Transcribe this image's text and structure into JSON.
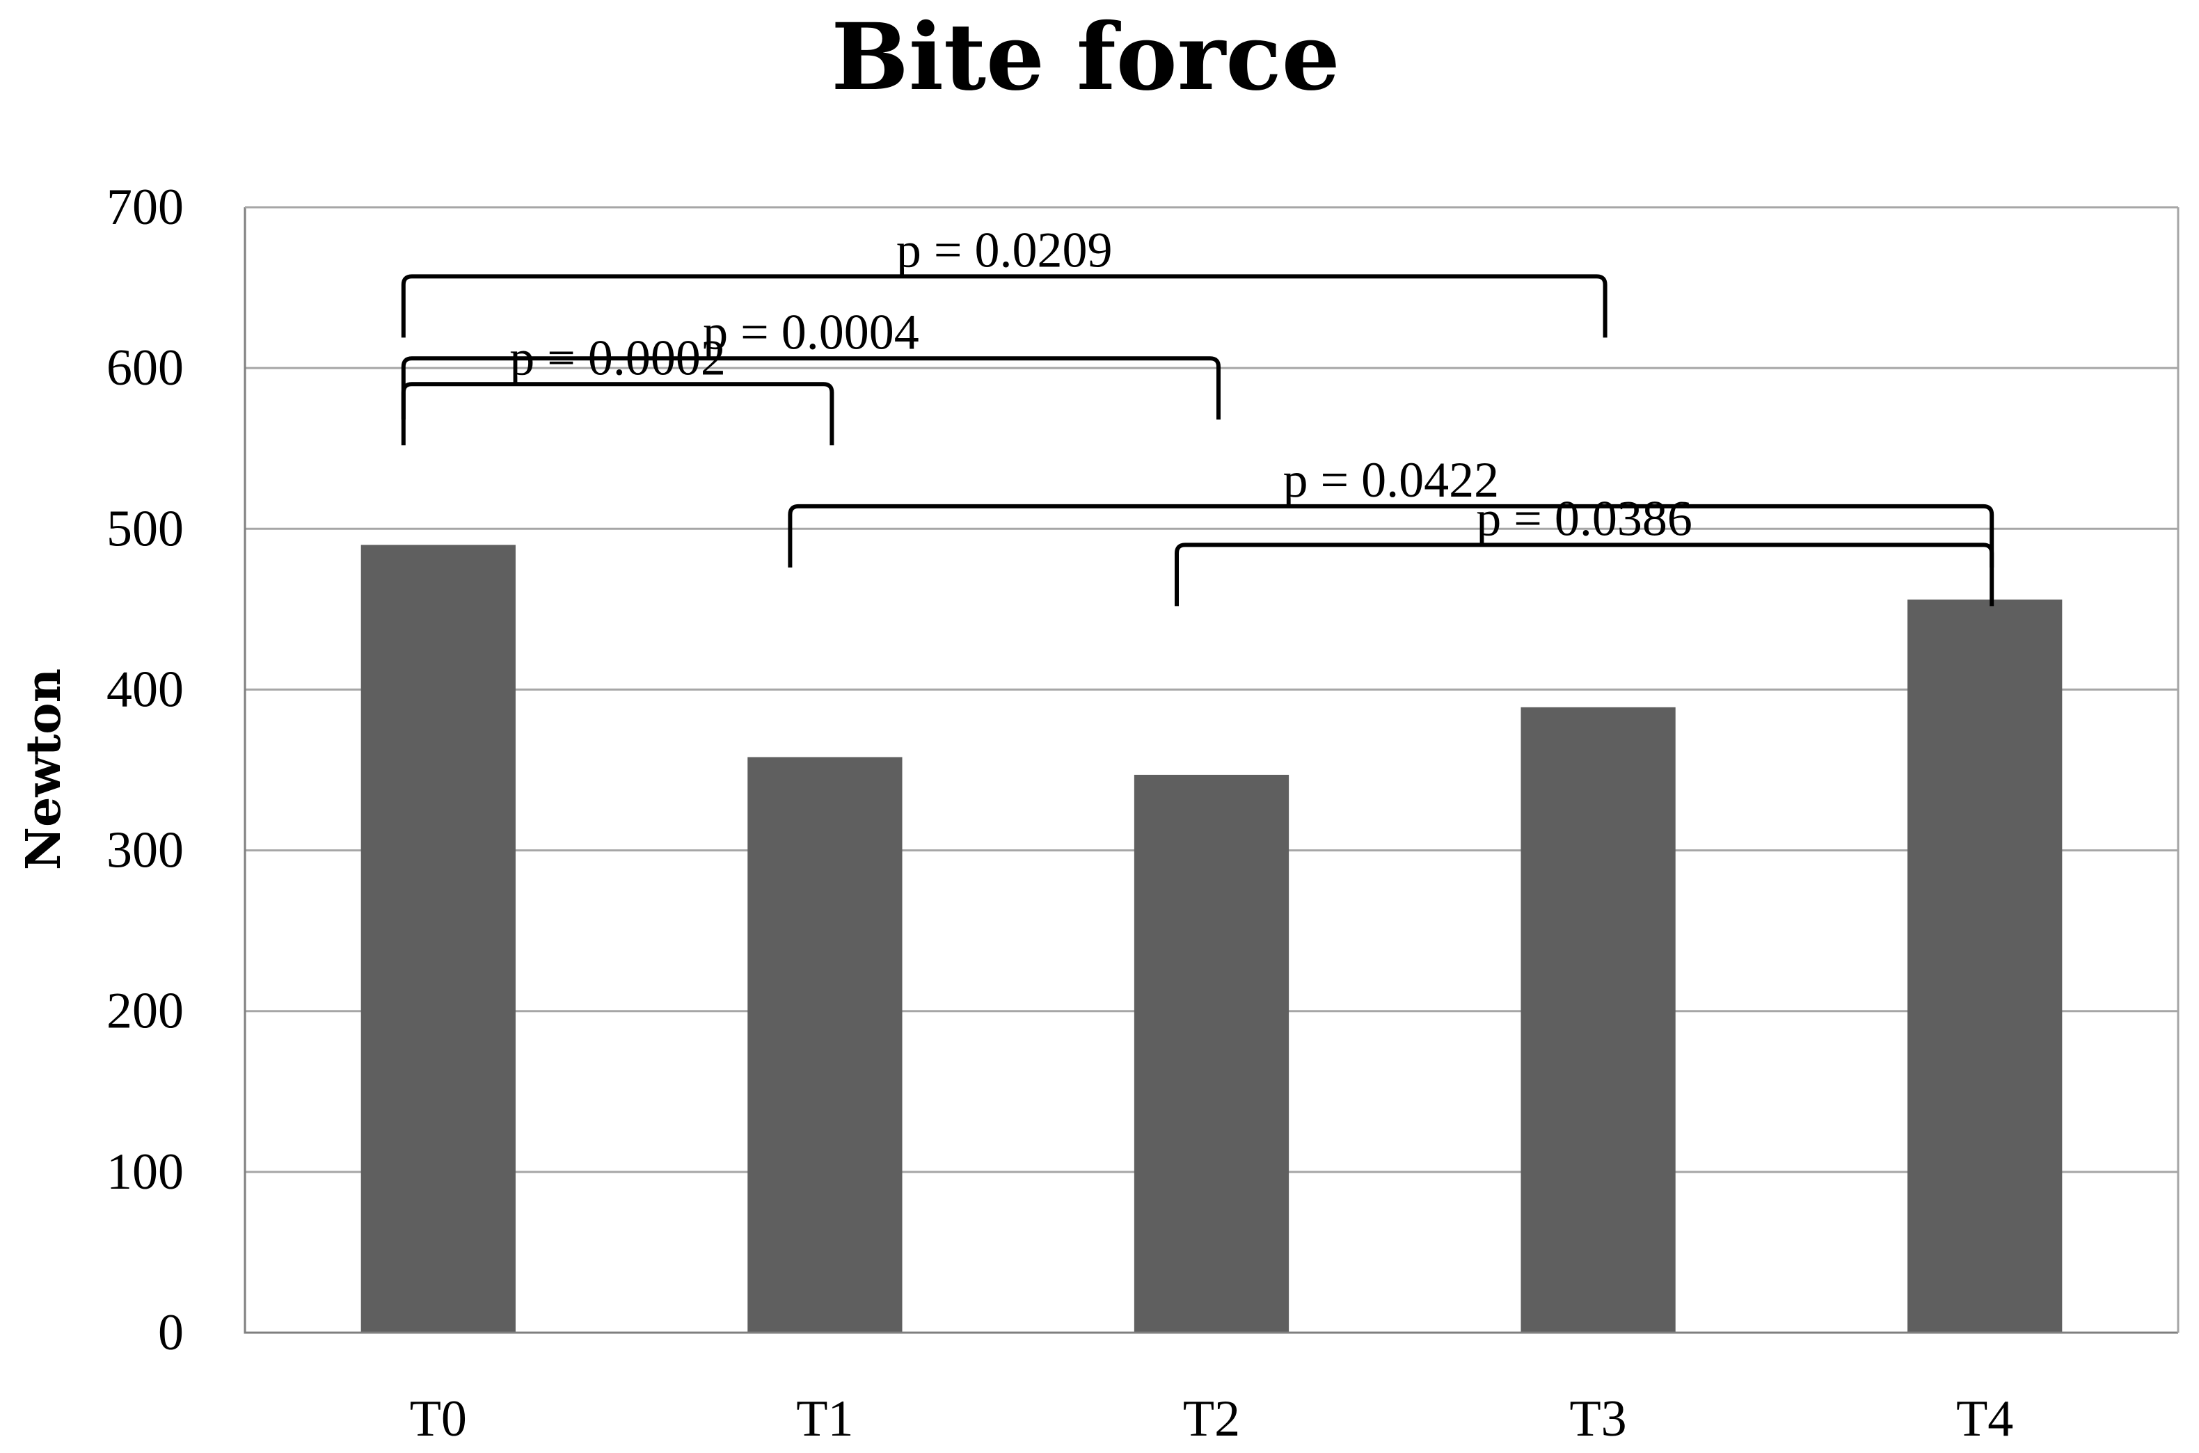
{
  "chart_data": {
    "type": "bar",
    "title": "Bite force",
    "xlabel": "",
    "ylabel": "Newton",
    "categories": [
      "T0",
      "T1",
      "T2",
      "T3",
      "T4"
    ],
    "values": [
      490,
      358,
      347,
      389,
      456
    ],
    "ylim": [
      0,
      700
    ],
    "yticks": [
      0,
      100,
      200,
      300,
      400,
      500,
      600,
      700
    ],
    "grid": true,
    "legend": "none",
    "bar_color": "#5f5f5f",
    "annotations": [
      {
        "label": "p = 0.0209",
        "from": "T0",
        "to": "T3",
        "y": 657
      },
      {
        "label": "p = 0.0004",
        "from": "T0",
        "to": "T2",
        "y": 606
      },
      {
        "label": "p = 0.0002",
        "from": "T0",
        "to": "T1",
        "y": 590
      },
      {
        "label": "p = 0.0422",
        "from": "T1",
        "to": "T4",
        "y": 514
      },
      {
        "label": "p = 0.0386",
        "from": "T2",
        "to": "T4",
        "y": 490
      }
    ]
  }
}
